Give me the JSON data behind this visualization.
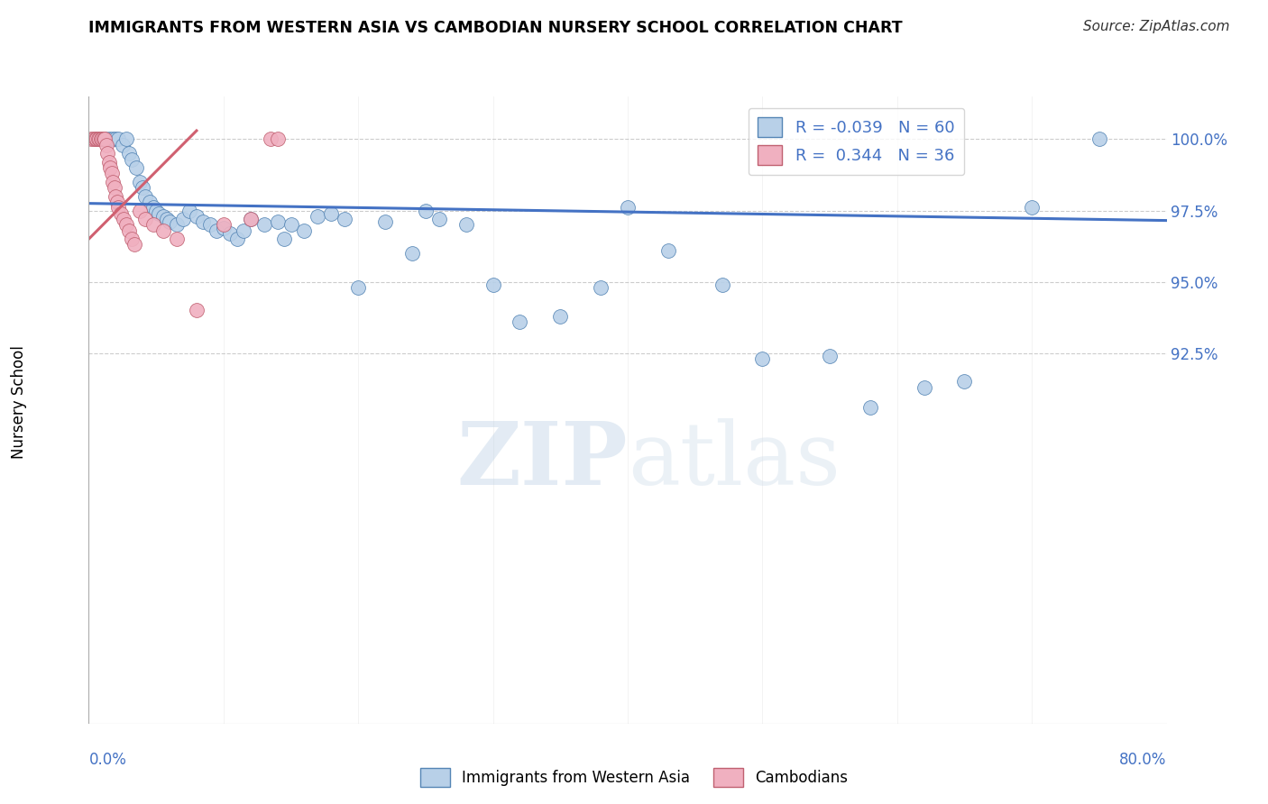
{
  "title": "IMMIGRANTS FROM WESTERN ASIA VS CAMBODIAN NURSERY SCHOOL CORRELATION CHART",
  "source": "Source: ZipAtlas.com",
  "ylabel": "Nursery School",
  "xmin": 0.0,
  "xmax": 80.0,
  "ymin": 79.5,
  "ymax": 101.5,
  "ytick_positions": [
    92.5,
    95.0,
    97.5,
    100.0
  ],
  "ytick_labels": [
    "92.5%",
    "95.0%",
    "97.5%",
    "100.0%"
  ],
  "legend_blue_r": "R = -0.039",
  "legend_blue_n": "N = 60",
  "legend_pink_r": "R =  0.344",
  "legend_pink_n": "N = 36",
  "blue_fill": "#b8d0e8",
  "blue_edge": "#5585b5",
  "blue_line": "#4472c4",
  "pink_fill": "#f0b0c0",
  "pink_edge": "#c06070",
  "pink_line": "#d06070",
  "axis_color": "#4472c4",
  "grid_color": "#c0c0c0",
  "watermark_zip": "ZIP",
  "watermark_atlas": "atlas",
  "blue_x": [
    1.2,
    1.5,
    1.8,
    2.0,
    2.2,
    2.5,
    2.8,
    3.0,
    3.2,
    3.5,
    3.8,
    4.0,
    4.2,
    4.5,
    4.8,
    5.0,
    5.2,
    5.5,
    5.8,
    6.0,
    6.5,
    7.0,
    7.5,
    8.0,
    8.5,
    9.0,
    9.5,
    10.0,
    10.5,
    11.0,
    11.5,
    12.0,
    13.0,
    14.0,
    14.5,
    15.0,
    16.0,
    17.0,
    18.0,
    19.0,
    20.0,
    22.0,
    24.0,
    25.0,
    26.0,
    28.0,
    30.0,
    32.0,
    35.0,
    38.0,
    40.0,
    43.0,
    47.0,
    50.0,
    55.0,
    58.0,
    62.0,
    65.0,
    70.0,
    75.0
  ],
  "blue_y": [
    100.0,
    100.0,
    100.0,
    100.0,
    100.0,
    99.8,
    100.0,
    99.5,
    99.3,
    99.0,
    98.5,
    98.3,
    98.0,
    97.8,
    97.6,
    97.5,
    97.4,
    97.3,
    97.2,
    97.1,
    97.0,
    97.2,
    97.5,
    97.3,
    97.1,
    97.0,
    96.8,
    96.9,
    96.7,
    96.5,
    96.8,
    97.2,
    97.0,
    97.1,
    96.5,
    97.0,
    96.8,
    97.3,
    97.4,
    97.2,
    94.8,
    97.1,
    96.0,
    97.5,
    97.2,
    97.0,
    94.9,
    93.6,
    93.8,
    94.8,
    97.6,
    96.1,
    94.9,
    92.3,
    92.4,
    90.6,
    91.3,
    91.5,
    97.6,
    100.0
  ],
  "pink_x": [
    0.2,
    0.4,
    0.5,
    0.6,
    0.7,
    0.8,
    0.9,
    1.0,
    1.1,
    1.2,
    1.3,
    1.4,
    1.5,
    1.6,
    1.7,
    1.8,
    1.9,
    2.0,
    2.1,
    2.2,
    2.4,
    2.6,
    2.8,
    3.0,
    3.2,
    3.4,
    3.8,
    4.2,
    4.8,
    5.5,
    6.5,
    8.0,
    10.0,
    12.0,
    13.5,
    14.0
  ],
  "pink_y": [
    100.0,
    100.0,
    100.0,
    100.0,
    100.0,
    100.0,
    100.0,
    100.0,
    100.0,
    100.0,
    99.8,
    99.5,
    99.2,
    99.0,
    98.8,
    98.5,
    98.3,
    98.0,
    97.8,
    97.6,
    97.4,
    97.2,
    97.0,
    96.8,
    96.5,
    96.3,
    97.5,
    97.2,
    97.0,
    96.8,
    96.5,
    94.0,
    97.0,
    97.2,
    100.0,
    100.0
  ],
  "blue_trend_x0": 0.0,
  "blue_trend_y0": 97.75,
  "blue_trend_x1": 80.0,
  "blue_trend_y1": 97.15,
  "pink_trend_x0": 0.0,
  "pink_trend_y0": 96.5,
  "pink_trend_x1": 8.0,
  "pink_trend_y1": 100.3
}
